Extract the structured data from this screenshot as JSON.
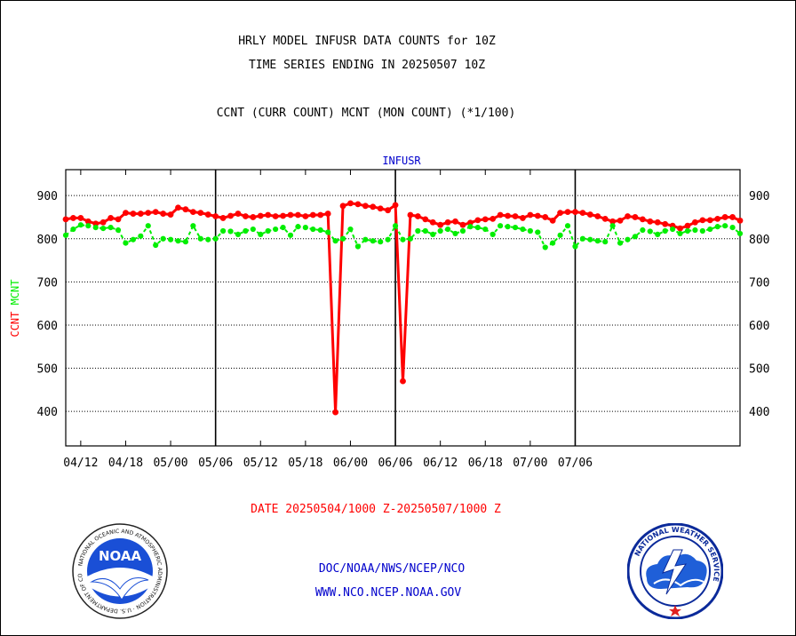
{
  "header": {
    "title_line1": "HRLY MODEL INFUSR DATA COUNTS for 10Z",
    "title_line2": "TIME SERIES ENDING IN 20250507 10Z",
    "subtitle": "CCNT (CURR COUNT) MCNT (MON COUNT) (*1/100)"
  },
  "chart_data": {
    "type": "line",
    "title": "INFUSR",
    "ylabel_left": {
      "ccnt": "CCNT",
      "mcnt": "MCNT"
    },
    "date_range": "DATE 20250504/1000 Z-20250507/1000 Z",
    "x_tick_labels": [
      "04/12",
      "04/18",
      "05/00",
      "05/06",
      "05/12",
      "05/18",
      "06/00",
      "06/06",
      "06/12",
      "06/18",
      "07/00",
      "07/06"
    ],
    "day_boundaries": [
      "05/06",
      "06/06",
      "07/06"
    ],
    "ylim": [
      320,
      960
    ],
    "yticks": [
      400,
      500,
      600,
      700,
      800,
      900
    ],
    "grid": true,
    "colors": {
      "ccnt": "#ff0000",
      "mcnt": "#00ee00",
      "title": "#0000cc",
      "footer": "#0000cc"
    },
    "series": [
      {
        "name": "CCNT",
        "values": [
          845,
          848,
          848,
          840,
          835,
          838,
          848,
          845,
          860,
          858,
          858,
          860,
          862,
          858,
          856,
          872,
          868,
          862,
          860,
          856,
          852,
          848,
          853,
          858,
          852,
          850,
          853,
          855,
          852,
          853,
          855,
          855,
          852,
          855,
          855,
          858,
          398,
          876,
          882,
          880,
          876,
          874,
          870,
          866,
          878,
          470,
          855,
          852,
          845,
          838,
          832,
          838,
          840,
          832,
          837,
          843,
          845,
          846,
          855,
          853,
          852,
          848,
          855,
          853,
          850,
          842,
          860,
          862,
          862,
          860,
          856,
          852,
          846,
          840,
          842,
          852,
          850,
          845,
          840,
          838,
          834,
          830,
          824,
          830,
          838,
          843,
          843,
          846,
          850,
          850,
          842
        ]
      },
      {
        "name": "MCNT",
        "values": [
          808,
          822,
          832,
          830,
          826,
          824,
          826,
          820,
          790,
          798,
          806,
          830,
          785,
          800,
          798,
          795,
          793,
          830,
          800,
          798,
          800,
          818,
          817,
          810,
          818,
          822,
          810,
          818,
          822,
          826,
          808,
          828,
          826,
          822,
          820,
          815,
          795,
          800,
          822,
          782,
          798,
          795,
          793,
          798,
          830,
          798,
          800,
          818,
          818,
          810,
          818,
          822,
          812,
          818,
          828,
          826,
          822,
          810,
          830,
          828,
          826,
          822,
          818,
          815,
          780,
          790,
          808,
          830,
          782,
          800,
          798,
          795,
          793,
          830,
          790,
          798,
          805,
          820,
          817,
          810,
          818,
          822,
          812,
          818,
          820,
          818,
          822,
          828,
          830,
          826,
          812
        ]
      }
    ]
  },
  "footer": {
    "link1": "DOC/NOAA/NWS/NCEP/NCO",
    "link2": "WWW.NCO.NCEP.NOAA.GOV",
    "noaa_logo_text": "NOAA",
    "noaa_ring_text": "NATIONAL OCEANIC AND ATMOSPHERIC ADMINISTRATION · U.S. DEPARTMENT OF COMMERCE ·",
    "nws_ring_text": "NATIONAL WEATHER SERVICE"
  }
}
